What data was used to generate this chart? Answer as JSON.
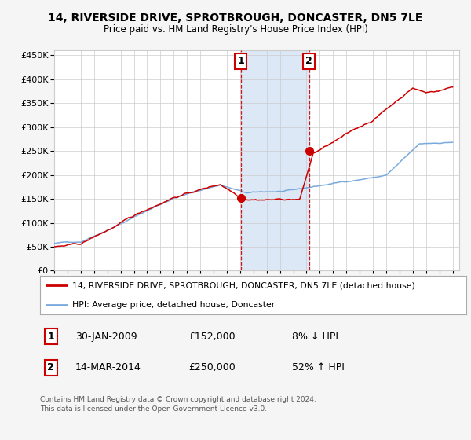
{
  "title": "14, RIVERSIDE DRIVE, SPROTBROUGH, DONCASTER, DN5 7LE",
  "subtitle": "Price paid vs. HM Land Registry's House Price Index (HPI)",
  "year_start": 1995,
  "year_end": 2025,
  "ylim": [
    0,
    460000
  ],
  "yticks": [
    0,
    50000,
    100000,
    150000,
    200000,
    250000,
    300000,
    350000,
    400000,
    450000
  ],
  "sale1_date": 2009.05,
  "sale1_price": 152000,
  "sale1_label": "1",
  "sale2_date": 2014.2,
  "sale2_price": 250000,
  "sale2_label": "2",
  "legend_line1": "14, RIVERSIDE DRIVE, SPROTBROUGH, DONCASTER, DN5 7LE (detached house)",
  "legend_line2": "HPI: Average price, detached house, Doncaster",
  "note1_label": "1",
  "note1_date": "30-JAN-2009",
  "note1_price": "£152,000",
  "note1_hpi": "8% ↓ HPI",
  "note2_label": "2",
  "note2_date": "14-MAR-2014",
  "note2_price": "£250,000",
  "note2_hpi": "52% ↑ HPI",
  "footer": "Contains HM Land Registry data © Crown copyright and database right 2024.\nThis data is licensed under the Open Government Licence v3.0.",
  "hpi_color": "#7aaadd",
  "price_color": "#cc0000",
  "bg_color": "#f5f5f5",
  "plot_bg": "#ffffff",
  "shade_color": "#dce8f5",
  "grid_color": "#cccccc"
}
